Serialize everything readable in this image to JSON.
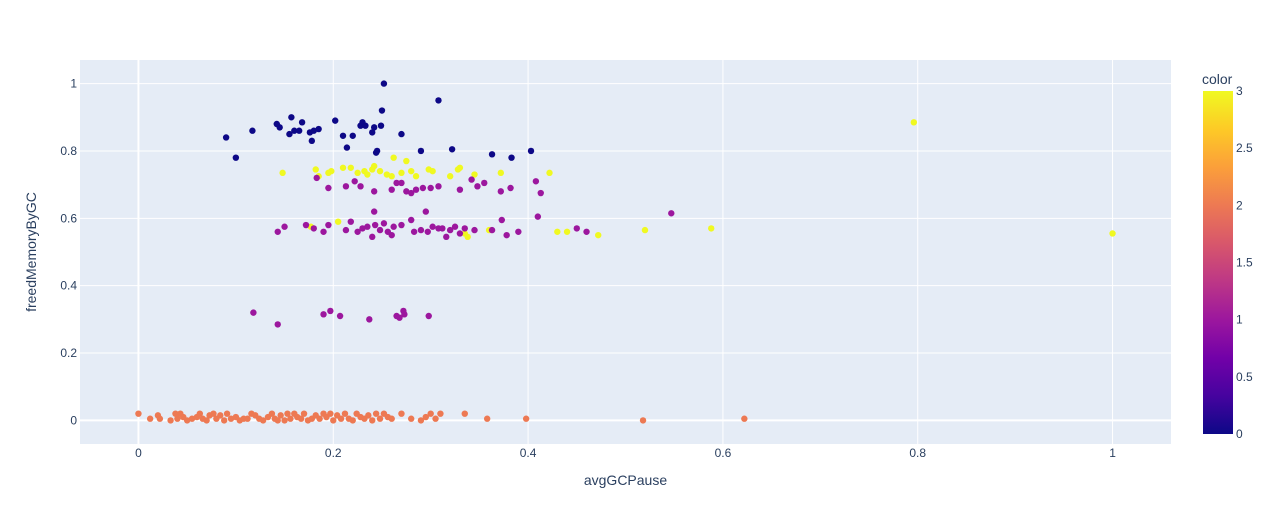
{
  "chart_data": {
    "type": "scatter",
    "xlabel": "avgGCPause",
    "ylabel": "freedMemoryByGC",
    "xlim": [
      -0.06,
      1.06
    ],
    "ylim": [
      -0.07,
      1.07
    ],
    "x_ticks": [
      0,
      0.2,
      0.4,
      0.6,
      0.8,
      1
    ],
    "x_tick_labels": [
      "0",
      "0.2",
      "0.4",
      "0.6",
      "0.8",
      "1"
    ],
    "y_ticks": [
      0,
      0.2,
      0.4,
      0.6,
      0.8,
      1
    ],
    "y_tick_labels": [
      "0",
      "0.2",
      "0.4",
      "0.6",
      "0.8",
      "1"
    ],
    "grid": true,
    "colorbar": {
      "title": "color",
      "min": 0,
      "max": 3,
      "ticks": [
        0,
        0.5,
        1,
        1.5,
        2,
        2.5,
        3
      ],
      "tick_labels": [
        "0",
        "0.5",
        "1",
        "1.5",
        "2",
        "2.5",
        "3"
      ],
      "colorscale": [
        "#0d0887",
        "#46039f",
        "#7201a8",
        "#9c179e",
        "#bd3786",
        "#d8576b",
        "#ed7953",
        "#fb9f3a",
        "#fdca26",
        "#f0f921"
      ]
    },
    "points": [
      {
        "x": 0.09,
        "y": 0.84,
        "c": 0
      },
      {
        "x": 0.1,
        "y": 0.78,
        "c": 0
      },
      {
        "x": 0.117,
        "y": 0.86,
        "c": 0
      },
      {
        "x": 0.142,
        "y": 0.88,
        "c": 0
      },
      {
        "x": 0.145,
        "y": 0.87,
        "c": 0
      },
      {
        "x": 0.155,
        "y": 0.85,
        "c": 0
      },
      {
        "x": 0.157,
        "y": 0.9,
        "c": 0
      },
      {
        "x": 0.16,
        "y": 0.86,
        "c": 0
      },
      {
        "x": 0.165,
        "y": 0.86,
        "c": 0
      },
      {
        "x": 0.168,
        "y": 0.885,
        "c": 0
      },
      {
        "x": 0.176,
        "y": 0.855,
        "c": 0
      },
      {
        "x": 0.178,
        "y": 0.83,
        "c": 0
      },
      {
        "x": 0.18,
        "y": 0.86,
        "c": 0
      },
      {
        "x": 0.185,
        "y": 0.865,
        "c": 0
      },
      {
        "x": 0.202,
        "y": 0.89,
        "c": 0
      },
      {
        "x": 0.21,
        "y": 0.845,
        "c": 0
      },
      {
        "x": 0.214,
        "y": 0.81,
        "c": 0
      },
      {
        "x": 0.22,
        "y": 0.845,
        "c": 0
      },
      {
        "x": 0.228,
        "y": 0.875,
        "c": 0
      },
      {
        "x": 0.23,
        "y": 0.885,
        "c": 0
      },
      {
        "x": 0.233,
        "y": 0.875,
        "c": 0
      },
      {
        "x": 0.24,
        "y": 0.855,
        "c": 0
      },
      {
        "x": 0.242,
        "y": 0.87,
        "c": 0
      },
      {
        "x": 0.244,
        "y": 0.795,
        "c": 0
      },
      {
        "x": 0.245,
        "y": 0.8,
        "c": 0
      },
      {
        "x": 0.249,
        "y": 0.875,
        "c": 0
      },
      {
        "x": 0.25,
        "y": 0.92,
        "c": 0
      },
      {
        "x": 0.252,
        "y": 1.0,
        "c": 0
      },
      {
        "x": 0.27,
        "y": 0.85,
        "c": 0
      },
      {
        "x": 0.29,
        "y": 0.8,
        "c": 0
      },
      {
        "x": 0.308,
        "y": 0.95,
        "c": 0
      },
      {
        "x": 0.322,
        "y": 0.805,
        "c": 0
      },
      {
        "x": 0.363,
        "y": 0.79,
        "c": 0
      },
      {
        "x": 0.383,
        "y": 0.78,
        "c": 0
      },
      {
        "x": 0.403,
        "y": 0.8,
        "c": 0
      },
      {
        "x": 0.148,
        "y": 0.735,
        "c": 3
      },
      {
        "x": 0.182,
        "y": 0.745,
        "c": 3
      },
      {
        "x": 0.185,
        "y": 0.725,
        "c": 3
      },
      {
        "x": 0.195,
        "y": 0.735,
        "c": 3
      },
      {
        "x": 0.198,
        "y": 0.74,
        "c": 3
      },
      {
        "x": 0.21,
        "y": 0.75,
        "c": 3
      },
      {
        "x": 0.218,
        "y": 0.75,
        "c": 3
      },
      {
        "x": 0.225,
        "y": 0.735,
        "c": 3
      },
      {
        "x": 0.232,
        "y": 0.74,
        "c": 3
      },
      {
        "x": 0.235,
        "y": 0.73,
        "c": 3
      },
      {
        "x": 0.24,
        "y": 0.745,
        "c": 3
      },
      {
        "x": 0.242,
        "y": 0.755,
        "c": 3
      },
      {
        "x": 0.248,
        "y": 0.74,
        "c": 3
      },
      {
        "x": 0.255,
        "y": 0.73,
        "c": 3
      },
      {
        "x": 0.26,
        "y": 0.725,
        "c": 3
      },
      {
        "x": 0.262,
        "y": 0.78,
        "c": 3
      },
      {
        "x": 0.27,
        "y": 0.735,
        "c": 3
      },
      {
        "x": 0.275,
        "y": 0.77,
        "c": 3
      },
      {
        "x": 0.28,
        "y": 0.74,
        "c": 3
      },
      {
        "x": 0.285,
        "y": 0.725,
        "c": 3
      },
      {
        "x": 0.298,
        "y": 0.745,
        "c": 3
      },
      {
        "x": 0.302,
        "y": 0.74,
        "c": 3
      },
      {
        "x": 0.32,
        "y": 0.725,
        "c": 3
      },
      {
        "x": 0.328,
        "y": 0.745,
        "c": 3
      },
      {
        "x": 0.33,
        "y": 0.75,
        "c": 3
      },
      {
        "x": 0.345,
        "y": 0.73,
        "c": 3
      },
      {
        "x": 0.372,
        "y": 0.735,
        "c": 3
      },
      {
        "x": 0.422,
        "y": 0.735,
        "c": 3
      },
      {
        "x": 0.177,
        "y": 0.575,
        "c": 3
      },
      {
        "x": 0.205,
        "y": 0.59,
        "c": 3
      },
      {
        "x": 0.335,
        "y": 0.555,
        "c": 3
      },
      {
        "x": 0.338,
        "y": 0.545,
        "c": 3
      },
      {
        "x": 0.36,
        "y": 0.565,
        "c": 3
      },
      {
        "x": 0.43,
        "y": 0.56,
        "c": 3
      },
      {
        "x": 0.44,
        "y": 0.56,
        "c": 3
      },
      {
        "x": 0.472,
        "y": 0.55,
        "c": 3
      },
      {
        "x": 0.52,
        "y": 0.565,
        "c": 3
      },
      {
        "x": 0.588,
        "y": 0.57,
        "c": 3
      },
      {
        "x": 0.796,
        "y": 0.885,
        "c": 3
      },
      {
        "x": 1.0,
        "y": 0.555,
        "c": 3
      },
      {
        "x": 0.183,
        "y": 0.72,
        "c": 1
      },
      {
        "x": 0.195,
        "y": 0.69,
        "c": 1
      },
      {
        "x": 0.213,
        "y": 0.695,
        "c": 1
      },
      {
        "x": 0.222,
        "y": 0.71,
        "c": 1
      },
      {
        "x": 0.228,
        "y": 0.695,
        "c": 1
      },
      {
        "x": 0.242,
        "y": 0.68,
        "c": 1
      },
      {
        "x": 0.26,
        "y": 0.685,
        "c": 1
      },
      {
        "x": 0.265,
        "y": 0.705,
        "c": 1
      },
      {
        "x": 0.27,
        "y": 0.705,
        "c": 1
      },
      {
        "x": 0.275,
        "y": 0.68,
        "c": 1
      },
      {
        "x": 0.28,
        "y": 0.675,
        "c": 1
      },
      {
        "x": 0.285,
        "y": 0.685,
        "c": 1
      },
      {
        "x": 0.292,
        "y": 0.69,
        "c": 1
      },
      {
        "x": 0.3,
        "y": 0.69,
        "c": 1
      },
      {
        "x": 0.308,
        "y": 0.695,
        "c": 1
      },
      {
        "x": 0.33,
        "y": 0.685,
        "c": 1
      },
      {
        "x": 0.342,
        "y": 0.715,
        "c": 1
      },
      {
        "x": 0.348,
        "y": 0.695,
        "c": 1
      },
      {
        "x": 0.355,
        "y": 0.705,
        "c": 1
      },
      {
        "x": 0.372,
        "y": 0.68,
        "c": 1
      },
      {
        "x": 0.382,
        "y": 0.69,
        "c": 1
      },
      {
        "x": 0.408,
        "y": 0.71,
        "c": 1
      },
      {
        "x": 0.413,
        "y": 0.675,
        "c": 1
      },
      {
        "x": 0.143,
        "y": 0.56,
        "c": 1
      },
      {
        "x": 0.15,
        "y": 0.575,
        "c": 1
      },
      {
        "x": 0.172,
        "y": 0.58,
        "c": 1
      },
      {
        "x": 0.18,
        "y": 0.57,
        "c": 1
      },
      {
        "x": 0.19,
        "y": 0.56,
        "c": 1
      },
      {
        "x": 0.195,
        "y": 0.58,
        "c": 1
      },
      {
        "x": 0.213,
        "y": 0.565,
        "c": 1
      },
      {
        "x": 0.218,
        "y": 0.59,
        "c": 1
      },
      {
        "x": 0.225,
        "y": 0.56,
        "c": 1
      },
      {
        "x": 0.23,
        "y": 0.57,
        "c": 1
      },
      {
        "x": 0.235,
        "y": 0.575,
        "c": 1
      },
      {
        "x": 0.24,
        "y": 0.545,
        "c": 1
      },
      {
        "x": 0.243,
        "y": 0.58,
        "c": 1
      },
      {
        "x": 0.248,
        "y": 0.565,
        "c": 1
      },
      {
        "x": 0.252,
        "y": 0.585,
        "c": 1
      },
      {
        "x": 0.256,
        "y": 0.56,
        "c": 1
      },
      {
        "x": 0.26,
        "y": 0.55,
        "c": 1
      },
      {
        "x": 0.262,
        "y": 0.575,
        "c": 1
      },
      {
        "x": 0.242,
        "y": 0.62,
        "c": 1
      },
      {
        "x": 0.27,
        "y": 0.58,
        "c": 1
      },
      {
        "x": 0.28,
        "y": 0.595,
        "c": 1
      },
      {
        "x": 0.283,
        "y": 0.56,
        "c": 1
      },
      {
        "x": 0.29,
        "y": 0.565,
        "c": 1
      },
      {
        "x": 0.295,
        "y": 0.62,
        "c": 1
      },
      {
        "x": 0.297,
        "y": 0.56,
        "c": 1
      },
      {
        "x": 0.302,
        "y": 0.575,
        "c": 1
      },
      {
        "x": 0.308,
        "y": 0.57,
        "c": 1
      },
      {
        "x": 0.312,
        "y": 0.57,
        "c": 1
      },
      {
        "x": 0.316,
        "y": 0.545,
        "c": 1
      },
      {
        "x": 0.32,
        "y": 0.565,
        "c": 1
      },
      {
        "x": 0.325,
        "y": 0.575,
        "c": 1
      },
      {
        "x": 0.33,
        "y": 0.555,
        "c": 1
      },
      {
        "x": 0.335,
        "y": 0.57,
        "c": 1
      },
      {
        "x": 0.345,
        "y": 0.565,
        "c": 1
      },
      {
        "x": 0.363,
        "y": 0.565,
        "c": 1
      },
      {
        "x": 0.373,
        "y": 0.595,
        "c": 1
      },
      {
        "x": 0.378,
        "y": 0.55,
        "c": 1
      },
      {
        "x": 0.39,
        "y": 0.56,
        "c": 1
      },
      {
        "x": 0.41,
        "y": 0.605,
        "c": 1
      },
      {
        "x": 0.45,
        "y": 0.57,
        "c": 1
      },
      {
        "x": 0.46,
        "y": 0.56,
        "c": 1
      },
      {
        "x": 0.547,
        "y": 0.615,
        "c": 1
      },
      {
        "x": 0.118,
        "y": 0.32,
        "c": 1
      },
      {
        "x": 0.143,
        "y": 0.285,
        "c": 1
      },
      {
        "x": 0.19,
        "y": 0.315,
        "c": 1
      },
      {
        "x": 0.197,
        "y": 0.325,
        "c": 1
      },
      {
        "x": 0.207,
        "y": 0.31,
        "c": 1
      },
      {
        "x": 0.237,
        "y": 0.3,
        "c": 1
      },
      {
        "x": 0.265,
        "y": 0.31,
        "c": 1
      },
      {
        "x": 0.268,
        "y": 0.305,
        "c": 1
      },
      {
        "x": 0.272,
        "y": 0.325,
        "c": 1
      },
      {
        "x": 0.273,
        "y": 0.315,
        "c": 1
      },
      {
        "x": 0.298,
        "y": 0.31,
        "c": 1
      },
      {
        "x": 0.0,
        "y": 0.02,
        "c": 2
      },
      {
        "x": 0.012,
        "y": 0.005,
        "c": 2
      },
      {
        "x": 0.02,
        "y": 0.015,
        "c": 2
      },
      {
        "x": 0.022,
        "y": 0.005,
        "c": 2
      },
      {
        "x": 0.033,
        "y": 0.0,
        "c": 2
      },
      {
        "x": 0.038,
        "y": 0.02,
        "c": 2
      },
      {
        "x": 0.04,
        "y": 0.005,
        "c": 2
      },
      {
        "x": 0.043,
        "y": 0.02,
        "c": 2
      },
      {
        "x": 0.046,
        "y": 0.01,
        "c": 2
      },
      {
        "x": 0.05,
        "y": 0.0,
        "c": 2
      },
      {
        "x": 0.055,
        "y": 0.005,
        "c": 2
      },
      {
        "x": 0.06,
        "y": 0.01,
        "c": 2
      },
      {
        "x": 0.063,
        "y": 0.02,
        "c": 2
      },
      {
        "x": 0.066,
        "y": 0.005,
        "c": 2
      },
      {
        "x": 0.07,
        "y": 0.0,
        "c": 2
      },
      {
        "x": 0.073,
        "y": 0.015,
        "c": 2
      },
      {
        "x": 0.077,
        "y": 0.02,
        "c": 2
      },
      {
        "x": 0.08,
        "y": 0.005,
        "c": 2
      },
      {
        "x": 0.084,
        "y": 0.015,
        "c": 2
      },
      {
        "x": 0.088,
        "y": 0.0,
        "c": 2
      },
      {
        "x": 0.091,
        "y": 0.02,
        "c": 2
      },
      {
        "x": 0.095,
        "y": 0.005,
        "c": 2
      },
      {
        "x": 0.1,
        "y": 0.01,
        "c": 2
      },
      {
        "x": 0.104,
        "y": 0.0,
        "c": 2
      },
      {
        "x": 0.108,
        "y": 0.005,
        "c": 2
      },
      {
        "x": 0.112,
        "y": 0.005,
        "c": 2
      },
      {
        "x": 0.116,
        "y": 0.02,
        "c": 2
      },
      {
        "x": 0.12,
        "y": 0.015,
        "c": 2
      },
      {
        "x": 0.124,
        "y": 0.005,
        "c": 2
      },
      {
        "x": 0.128,
        "y": 0.0,
        "c": 2
      },
      {
        "x": 0.133,
        "y": 0.01,
        "c": 2
      },
      {
        "x": 0.137,
        "y": 0.02,
        "c": 2
      },
      {
        "x": 0.14,
        "y": 0.005,
        "c": 2
      },
      {
        "x": 0.143,
        "y": 0.0,
        "c": 2
      },
      {
        "x": 0.146,
        "y": 0.015,
        "c": 2
      },
      {
        "x": 0.15,
        "y": 0.0,
        "c": 2
      },
      {
        "x": 0.153,
        "y": 0.02,
        "c": 2
      },
      {
        "x": 0.156,
        "y": 0.005,
        "c": 2
      },
      {
        "x": 0.16,
        "y": 0.02,
        "c": 2
      },
      {
        "x": 0.163,
        "y": 0.01,
        "c": 2
      },
      {
        "x": 0.167,
        "y": 0.005,
        "c": 2
      },
      {
        "x": 0.17,
        "y": 0.02,
        "c": 2
      },
      {
        "x": 0.174,
        "y": 0.0,
        "c": 2
      },
      {
        "x": 0.178,
        "y": 0.005,
        "c": 2
      },
      {
        "x": 0.182,
        "y": 0.015,
        "c": 2
      },
      {
        "x": 0.186,
        "y": 0.005,
        "c": 2
      },
      {
        "x": 0.19,
        "y": 0.02,
        "c": 2
      },
      {
        "x": 0.193,
        "y": 0.01,
        "c": 2
      },
      {
        "x": 0.197,
        "y": 0.02,
        "c": 2
      },
      {
        "x": 0.2,
        "y": 0.0,
        "c": 2
      },
      {
        "x": 0.204,
        "y": 0.015,
        "c": 2
      },
      {
        "x": 0.208,
        "y": 0.005,
        "c": 2
      },
      {
        "x": 0.212,
        "y": 0.02,
        "c": 2
      },
      {
        "x": 0.216,
        "y": 0.005,
        "c": 2
      },
      {
        "x": 0.22,
        "y": 0.0,
        "c": 2
      },
      {
        "x": 0.224,
        "y": 0.02,
        "c": 2
      },
      {
        "x": 0.228,
        "y": 0.01,
        "c": 2
      },
      {
        "x": 0.232,
        "y": 0.005,
        "c": 2
      },
      {
        "x": 0.236,
        "y": 0.015,
        "c": 2
      },
      {
        "x": 0.24,
        "y": 0.0,
        "c": 2
      },
      {
        "x": 0.244,
        "y": 0.02,
        "c": 2
      },
      {
        "x": 0.248,
        "y": 0.005,
        "c": 2
      },
      {
        "x": 0.252,
        "y": 0.02,
        "c": 2
      },
      {
        "x": 0.256,
        "y": 0.01,
        "c": 2
      },
      {
        "x": 0.26,
        "y": 0.005,
        "c": 2
      },
      {
        "x": 0.27,
        "y": 0.02,
        "c": 2
      },
      {
        "x": 0.28,
        "y": 0.005,
        "c": 2
      },
      {
        "x": 0.29,
        "y": 0.0,
        "c": 2
      },
      {
        "x": 0.295,
        "y": 0.01,
        "c": 2
      },
      {
        "x": 0.3,
        "y": 0.02,
        "c": 2
      },
      {
        "x": 0.305,
        "y": 0.005,
        "c": 2
      },
      {
        "x": 0.31,
        "y": 0.02,
        "c": 2
      },
      {
        "x": 0.335,
        "y": 0.02,
        "c": 2
      },
      {
        "x": 0.358,
        "y": 0.005,
        "c": 2
      },
      {
        "x": 0.398,
        "y": 0.005,
        "c": 2
      },
      {
        "x": 0.518,
        "y": 0.0,
        "c": 2
      },
      {
        "x": 0.622,
        "y": 0.005,
        "c": 2
      }
    ]
  }
}
